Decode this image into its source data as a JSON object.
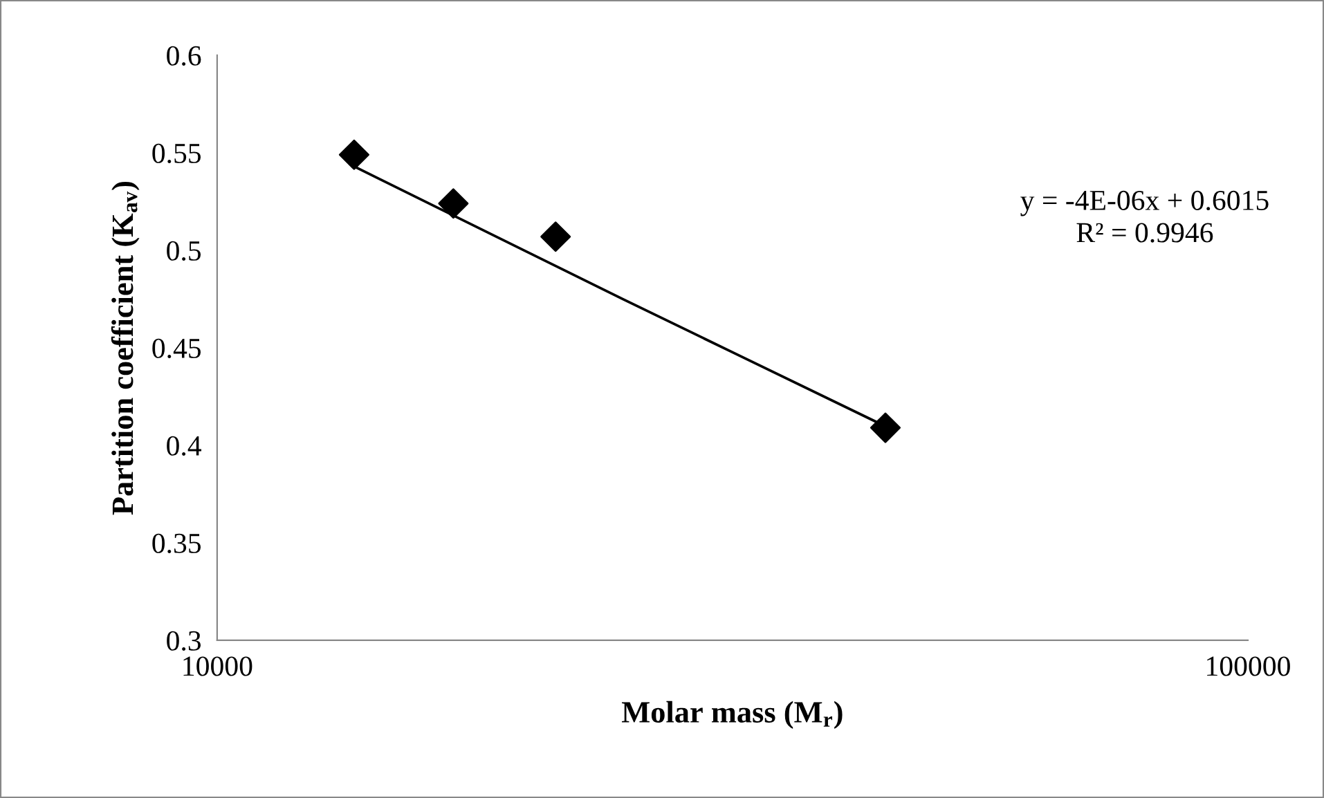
{
  "chart_data": {
    "type": "scatter",
    "xlabel": "Molar mass (M$_{r}$)",
    "ylabel": "Partition coefficient (K$_{av}$)",
    "log": "x",
    "xlim": [
      10000,
      100000
    ],
    "xticks": [
      10000,
      100000
    ],
    "ylim": [
      0.3,
      0.6
    ],
    "yticks": [
      0.3,
      0.35,
      0.4,
      0.45,
      0.5,
      0.55,
      0.6
    ],
    "grid": false,
    "legend": false,
    "series": [
      {
        "color": "#000000",
        "marker": "diamond",
        "x": [
          13580,
          16950,
          21300,
          44500
        ],
        "values": [
          0.549,
          0.524,
          0.507,
          0.409
        ]
      },
      {
        "type": "line",
        "color": "#000000",
        "marker": "none",
        "line_style": "solid",
        "x": [
          13580,
          24740,
          44000
        ],
        "values": [
          0.543,
          0.475,
          0.411
        ]
      }
    ],
    "annotations": [
      "y = -4E-06x + 0.6015\nR² = 0.9946"
    ]
  }
}
